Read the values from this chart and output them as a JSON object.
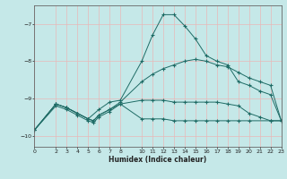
{
  "xlabel": "Humidex (Indice chaleur)",
  "bg_color": "#c5e8e8",
  "grid_color": "#e8b8b8",
  "line_color": "#1e6b65",
  "xlim": [
    0,
    23
  ],
  "ylim": [
    -10.3,
    -6.5
  ],
  "yticks": [
    -10,
    -9,
    -8,
    -7
  ],
  "xticks": [
    0,
    2,
    3,
    4,
    5,
    6,
    7,
    8,
    10,
    11,
    12,
    13,
    14,
    15,
    16,
    17,
    18,
    19,
    20,
    21,
    22,
    23
  ],
  "curve1_x": [
    0,
    2,
    3,
    4,
    5,
    6,
    7,
    8,
    10,
    11,
    12,
    13,
    14,
    15,
    16,
    17,
    18,
    19,
    20,
    21,
    22,
    23
  ],
  "curve1_y": [
    -9.85,
    -9.15,
    -9.25,
    -9.4,
    -9.55,
    -9.3,
    -9.1,
    -9.05,
    -8.0,
    -7.3,
    -6.75,
    -6.75,
    -7.05,
    -7.4,
    -7.85,
    -8.0,
    -8.1,
    -8.55,
    -8.65,
    -8.8,
    -8.9,
    -9.6
  ],
  "curve2_x": [
    0,
    2,
    3,
    4,
    5,
    5.5,
    6,
    7,
    8,
    10,
    11,
    12,
    13,
    14,
    15,
    16,
    17,
    18,
    19,
    20,
    21,
    22,
    23
  ],
  "curve2_y": [
    -9.85,
    -9.15,
    -9.25,
    -9.4,
    -9.55,
    -9.6,
    -9.45,
    -9.3,
    -9.1,
    -8.55,
    -8.35,
    -8.2,
    -8.1,
    -8.0,
    -7.95,
    -8.0,
    -8.1,
    -8.15,
    -8.3,
    -8.45,
    -8.55,
    -8.65,
    -9.6
  ],
  "curve3_x": [
    0,
    2,
    3,
    4,
    5,
    5.5,
    6,
    7,
    8,
    10,
    11,
    12,
    13,
    14,
    15,
    16,
    17,
    18,
    19,
    20,
    21,
    22,
    23
  ],
  "curve3_y": [
    -9.85,
    -9.15,
    -9.25,
    -9.4,
    -9.55,
    -9.6,
    -9.45,
    -9.3,
    -9.15,
    -9.05,
    -9.05,
    -9.05,
    -9.1,
    -9.1,
    -9.1,
    -9.1,
    -9.1,
    -9.15,
    -9.2,
    -9.4,
    -9.5,
    -9.6,
    -9.6
  ],
  "curve4_x": [
    0,
    2,
    3,
    4,
    5,
    5.5,
    6,
    7,
    8,
    10,
    11,
    12,
    13,
    14,
    15,
    16,
    17,
    18,
    19,
    20,
    22,
    23
  ],
  "curve4_y": [
    -9.85,
    -9.2,
    -9.3,
    -9.45,
    -9.6,
    -9.65,
    -9.5,
    -9.35,
    -9.15,
    -9.55,
    -9.55,
    -9.55,
    -9.6,
    -9.6,
    -9.6,
    -9.6,
    -9.6,
    -9.6,
    -9.6,
    -9.6,
    -9.6,
    -9.6
  ]
}
